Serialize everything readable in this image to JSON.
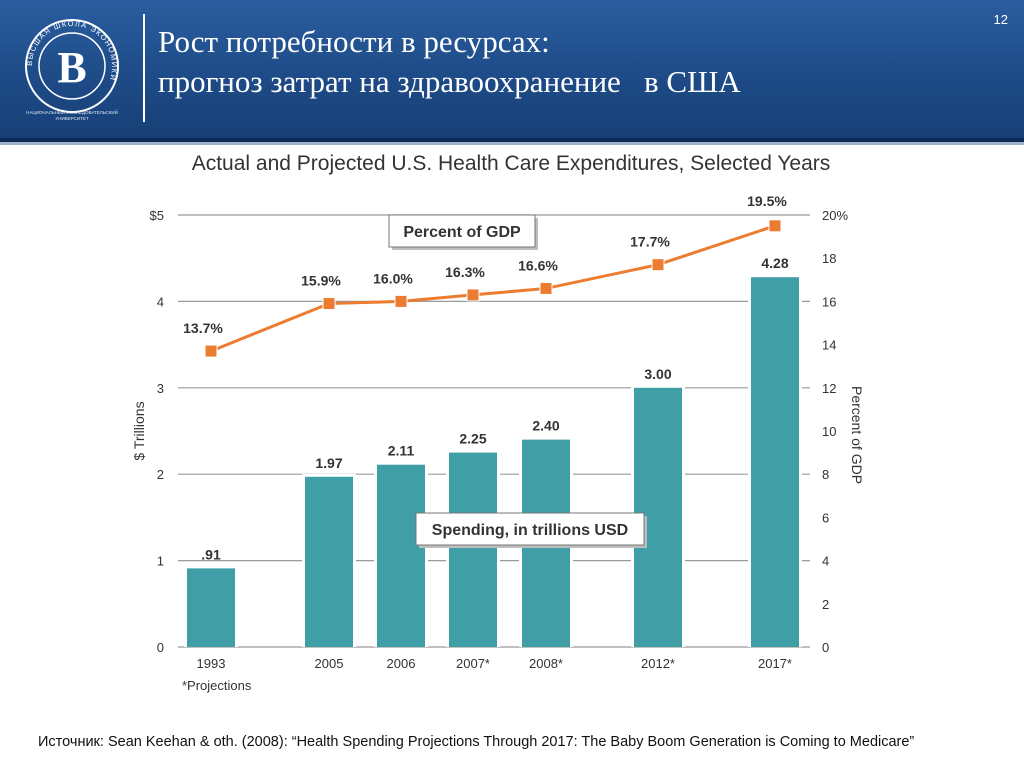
{
  "header": {
    "title_line1": "Рост потребности в ресурсах:",
    "title_line2": "прогноз затрат на здравоохранение   в США",
    "page_number": "12",
    "logo_caption_line1": "НАЦИОНАЛЬНЫЙ ИССЛЕДОВАТЕЛЬСКИЙ",
    "logo_caption_line2": "УНИВЕРСИТЕТ",
    "logo_ring_text": "ВЫСШАЯ ШКОЛА ЭКОНОМИКИ"
  },
  "chart_data": {
    "type": "bar",
    "title": "Actual and Projected U.S. Health Care Expenditures, Selected Years",
    "categories": [
      "1993",
      "2005",
      "2006",
      "2007*",
      "2008*",
      "2012*",
      "2017*"
    ],
    "series": [
      {
        "name": "Spending, in trillions USD",
        "type": "bar",
        "values": [
          0.91,
          1.97,
          2.11,
          2.25,
          2.4,
          3.0,
          4.28
        ],
        "value_labels": [
          ".91",
          "1.97",
          "2.11",
          "2.25",
          "2.40",
          "3.00",
          "4.28"
        ],
        "color": "#3f9ea6"
      },
      {
        "name": "Percent of GDP",
        "type": "line",
        "axis": "right",
        "values": [
          13.7,
          15.9,
          16.0,
          16.3,
          16.6,
          17.7,
          19.5
        ],
        "value_labels": [
          "13.7%",
          "15.9%",
          "16.0%",
          "16.3%",
          "16.6%",
          "17.7%",
          "19.5%"
        ],
        "color": "#ec7c30"
      }
    ],
    "ylabel": "$ Trillions",
    "ylabel_right": "Percent of GDP",
    "ylim": [
      0,
      5
    ],
    "ylim_right": [
      0,
      20
    ],
    "yticks_left": [
      "0",
      "1",
      "2",
      "3",
      "4",
      "$5"
    ],
    "yticks_right": [
      "0",
      "2",
      "4",
      "6",
      "8",
      "10",
      "12",
      "14",
      "16",
      "18",
      "20%"
    ],
    "footnote": "*Projections",
    "grid": true
  },
  "source": "Источник: Sean Keehan & oth. (2008): “Health Spending Projections Through 2017: The Baby Boom Generation is Coming to Medicare”"
}
